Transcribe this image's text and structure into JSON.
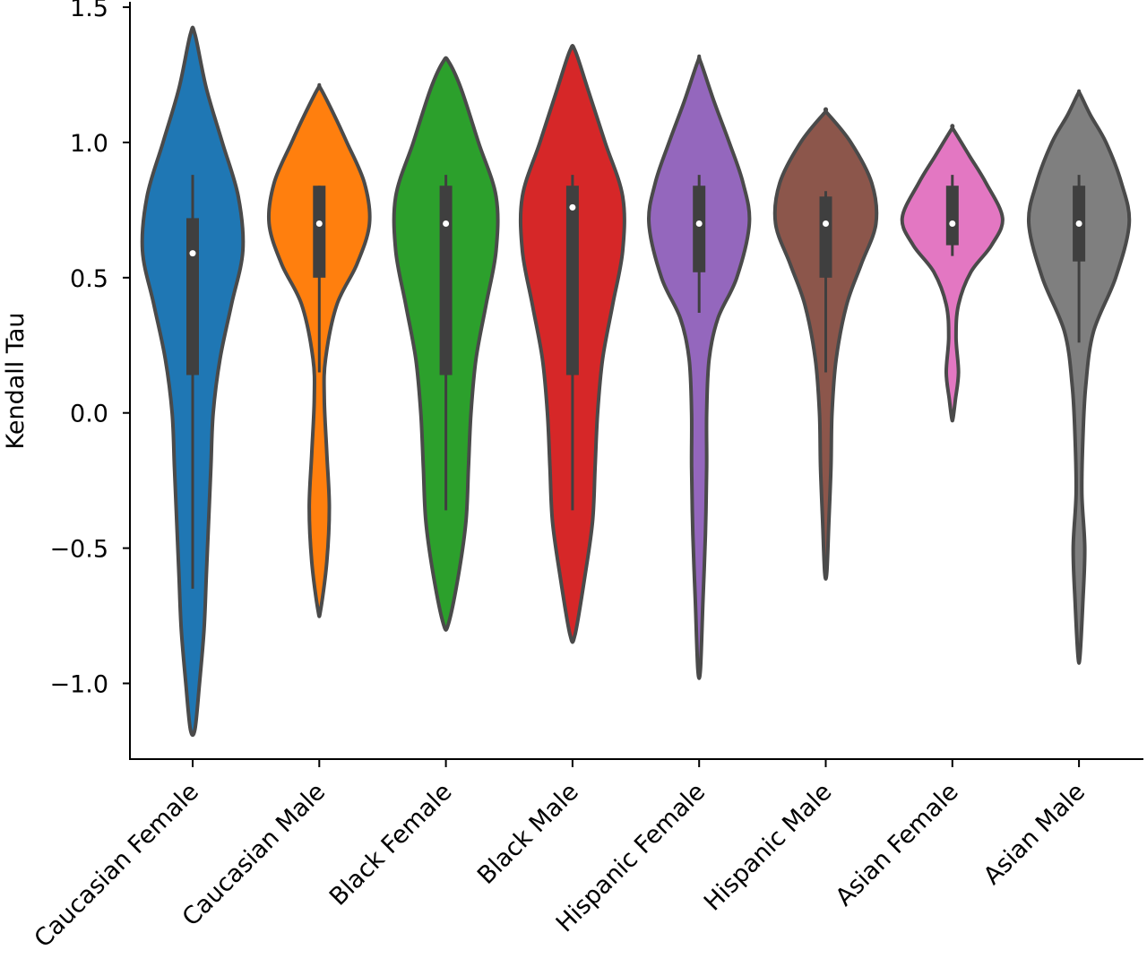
{
  "chart_data": {
    "type": "violin",
    "title": "",
    "xlabel": "",
    "ylabel": "Kendall Tau",
    "ylim": [
      -1.28,
      1.52
    ],
    "yticks": [
      -1.0,
      -0.5,
      0.0,
      0.5,
      1.0,
      1.5
    ],
    "ytick_labels": [
      "−1.0",
      "−0.5",
      "0.0",
      "0.5",
      "1.0",
      "1.5"
    ],
    "categories": [
      "Caucasian Female",
      "Caucasian Male",
      "Black Female",
      "Black Male",
      "Hispanic Female",
      "Hispanic Male",
      "Asian Female",
      "Asian Male"
    ],
    "series": [
      {
        "category": "Caucasian Female",
        "color": "#1f77b4",
        "median": 0.59,
        "q1": 0.14,
        "q3": 0.72,
        "whisker_low": -0.65,
        "whisker_high": 0.88,
        "min": -1.17,
        "max": 1.4,
        "density": [
          [
            -1.17,
            0.01
          ],
          [
            -1.0,
            0.03
          ],
          [
            -0.8,
            0.05
          ],
          [
            -0.6,
            0.06
          ],
          [
            -0.4,
            0.07
          ],
          [
            -0.2,
            0.08
          ],
          [
            0.0,
            0.09
          ],
          [
            0.2,
            0.12
          ],
          [
            0.4,
            0.17
          ],
          [
            0.6,
            0.22
          ],
          [
            0.8,
            0.2
          ],
          [
            1.0,
            0.13
          ],
          [
            1.2,
            0.06
          ],
          [
            1.4,
            0.01
          ]
        ]
      },
      {
        "category": "Caucasian Male",
        "color": "#ff7f0e",
        "median": 0.7,
        "q1": 0.5,
        "q3": 0.84,
        "whisker_low": 0.15,
        "whisker_high": 0.84,
        "min": -0.73,
        "max": 1.2,
        "density": [
          [
            -0.73,
            0.01
          ],
          [
            -0.55,
            0.06
          ],
          [
            -0.35,
            0.08
          ],
          [
            -0.15,
            0.06
          ],
          [
            0.05,
            0.04
          ],
          [
            0.2,
            0.05
          ],
          [
            0.4,
            0.14
          ],
          [
            0.55,
            0.3
          ],
          [
            0.7,
            0.4
          ],
          [
            0.85,
            0.36
          ],
          [
            1.0,
            0.22
          ],
          [
            1.1,
            0.12
          ],
          [
            1.2,
            0.01
          ]
        ]
      },
      {
        "category": "Black Female",
        "color": "#2ca02c",
        "median": 0.7,
        "q1": 0.14,
        "q3": 0.84,
        "whisker_low": -0.36,
        "whisker_high": 0.88,
        "min": -0.78,
        "max": 1.3,
        "density": [
          [
            -0.78,
            0.01
          ],
          [
            -0.6,
            0.05
          ],
          [
            -0.4,
            0.08
          ],
          [
            -0.2,
            0.09
          ],
          [
            0.0,
            0.1
          ],
          [
            0.2,
            0.12
          ],
          [
            0.4,
            0.16
          ],
          [
            0.6,
            0.2
          ],
          [
            0.8,
            0.2
          ],
          [
            1.0,
            0.13
          ],
          [
            1.2,
            0.06
          ],
          [
            1.3,
            0.01
          ]
        ]
      },
      {
        "category": "Black Male",
        "color": "#d62728",
        "median": 0.76,
        "q1": 0.14,
        "q3": 0.84,
        "whisker_low": -0.36,
        "whisker_high": 0.88,
        "min": -0.82,
        "max": 1.34,
        "density": [
          [
            -0.82,
            0.01
          ],
          [
            -0.6,
            0.05
          ],
          [
            -0.4,
            0.08
          ],
          [
            -0.2,
            0.09
          ],
          [
            0.0,
            0.1
          ],
          [
            0.2,
            0.12
          ],
          [
            0.4,
            0.16
          ],
          [
            0.6,
            0.2
          ],
          [
            0.8,
            0.2
          ],
          [
            1.0,
            0.13
          ],
          [
            1.2,
            0.06
          ],
          [
            1.34,
            0.01
          ]
        ]
      },
      {
        "category": "Hispanic Female",
        "color": "#9467bd",
        "median": 0.7,
        "q1": 0.52,
        "q3": 0.84,
        "whisker_low": 0.37,
        "whisker_high": 0.88,
        "min": -0.95,
        "max": 1.3,
        "density": [
          [
            -0.95,
            0.01
          ],
          [
            -0.7,
            0.03
          ],
          [
            -0.45,
            0.05
          ],
          [
            -0.2,
            0.06
          ],
          [
            0.0,
            0.06
          ],
          [
            0.2,
            0.08
          ],
          [
            0.35,
            0.15
          ],
          [
            0.5,
            0.3
          ],
          [
            0.7,
            0.4
          ],
          [
            0.85,
            0.35
          ],
          [
            1.0,
            0.24
          ],
          [
            1.15,
            0.12
          ],
          [
            1.3,
            0.01
          ]
        ]
      },
      {
        "category": "Hispanic Male",
        "color": "#8c564b",
        "median": 0.7,
        "q1": 0.5,
        "q3": 0.8,
        "whisker_low": 0.15,
        "whisker_high": 0.82,
        "min": -0.59,
        "max": 1.11,
        "density": [
          [
            -0.59,
            0.01
          ],
          [
            -0.4,
            0.03
          ],
          [
            -0.2,
            0.05
          ],
          [
            0.0,
            0.06
          ],
          [
            0.2,
            0.1
          ],
          [
            0.4,
            0.2
          ],
          [
            0.55,
            0.34
          ],
          [
            0.7,
            0.48
          ],
          [
            0.85,
            0.44
          ],
          [
            1.0,
            0.24
          ],
          [
            1.11,
            0.01
          ]
        ]
      },
      {
        "category": "Asian Female",
        "color": "#e377c2",
        "median": 0.7,
        "q1": 0.62,
        "q3": 0.84,
        "whisker_low": 0.58,
        "whisker_high": 0.88,
        "min": -0.02,
        "max": 1.05,
        "density": [
          [
            -0.02,
            0.01
          ],
          [
            0.05,
            0.05
          ],
          [
            0.15,
            0.1
          ],
          [
            0.28,
            0.06
          ],
          [
            0.4,
            0.1
          ],
          [
            0.52,
            0.3
          ],
          [
            0.62,
            0.64
          ],
          [
            0.72,
            0.82
          ],
          [
            0.85,
            0.55
          ],
          [
            0.95,
            0.28
          ],
          [
            1.05,
            0.01
          ]
        ]
      },
      {
        "category": "Asian Male",
        "color": "#7f7f7f",
        "median": 0.7,
        "q1": 0.56,
        "q3": 0.84,
        "whisker_low": 0.26,
        "whisker_high": 0.88,
        "min": -0.9,
        "max": 1.18,
        "density": [
          [
            -0.9,
            0.01
          ],
          [
            -0.7,
            0.04
          ],
          [
            -0.5,
            0.06
          ],
          [
            -0.3,
            0.03
          ],
          [
            -0.1,
            0.04
          ],
          [
            0.1,
            0.07
          ],
          [
            0.3,
            0.15
          ],
          [
            0.5,
            0.38
          ],
          [
            0.7,
            0.52
          ],
          [
            0.85,
            0.44
          ],
          [
            1.0,
            0.28
          ],
          [
            1.1,
            0.12
          ],
          [
            1.18,
            0.01
          ]
        ]
      }
    ]
  }
}
